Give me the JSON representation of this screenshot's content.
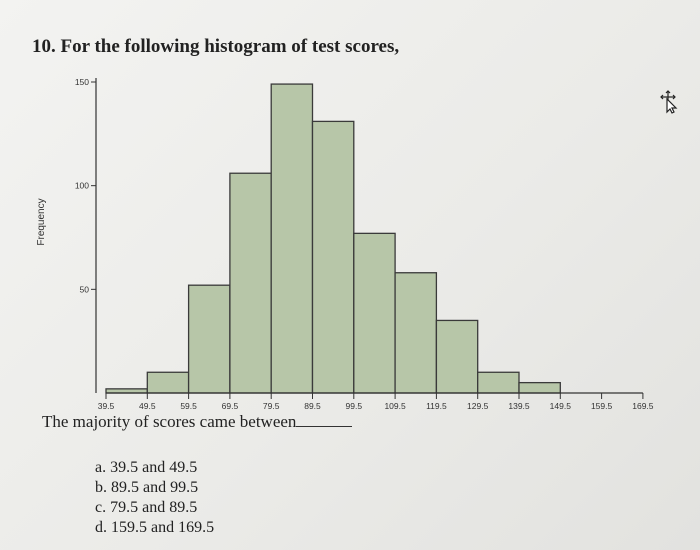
{
  "question": {
    "text": "10. For the following histogram of test scores,"
  },
  "chart_data": {
    "type": "bar",
    "title": "",
    "xlabel": "",
    "ylabel": "Frequency",
    "bin_edges": [
      39.5,
      49.5,
      59.5,
      69.5,
      79.5,
      89.5,
      99.5,
      109.5,
      119.5,
      129.5,
      139.5,
      149.5,
      159.5,
      169.5
    ],
    "x_tick_labels": [
      "39.5",
      "49.5",
      "59.5",
      "69.5",
      "79.5",
      "89.5",
      "99.5",
      "109.5",
      "119.5",
      "129.5",
      "139.5",
      "149.5",
      "159.5",
      "169.5"
    ],
    "values": [
      2,
      10,
      52,
      106,
      149,
      131,
      77,
      58,
      35,
      10,
      5,
      0,
      0
    ],
    "ylim": [
      0,
      150
    ],
    "y_ticks": [
      50,
      100,
      150
    ],
    "y_tick_labels": [
      "50",
      "100",
      "150"
    ],
    "bar_color": "#b7c6a8",
    "edge_color": "#3a3a3a",
    "grid": false
  },
  "prompt": {
    "text": "The majority of scores came between"
  },
  "options": [
    {
      "label": "a. 39.5 and 49.5"
    },
    {
      "label": "b. 89.5 and 99.5"
    },
    {
      "label": "c. 79.5 and 89.5"
    },
    {
      "label": "d. 159.5 and 169.5"
    }
  ],
  "cursor": {
    "icon": "move-cursor-icon"
  }
}
